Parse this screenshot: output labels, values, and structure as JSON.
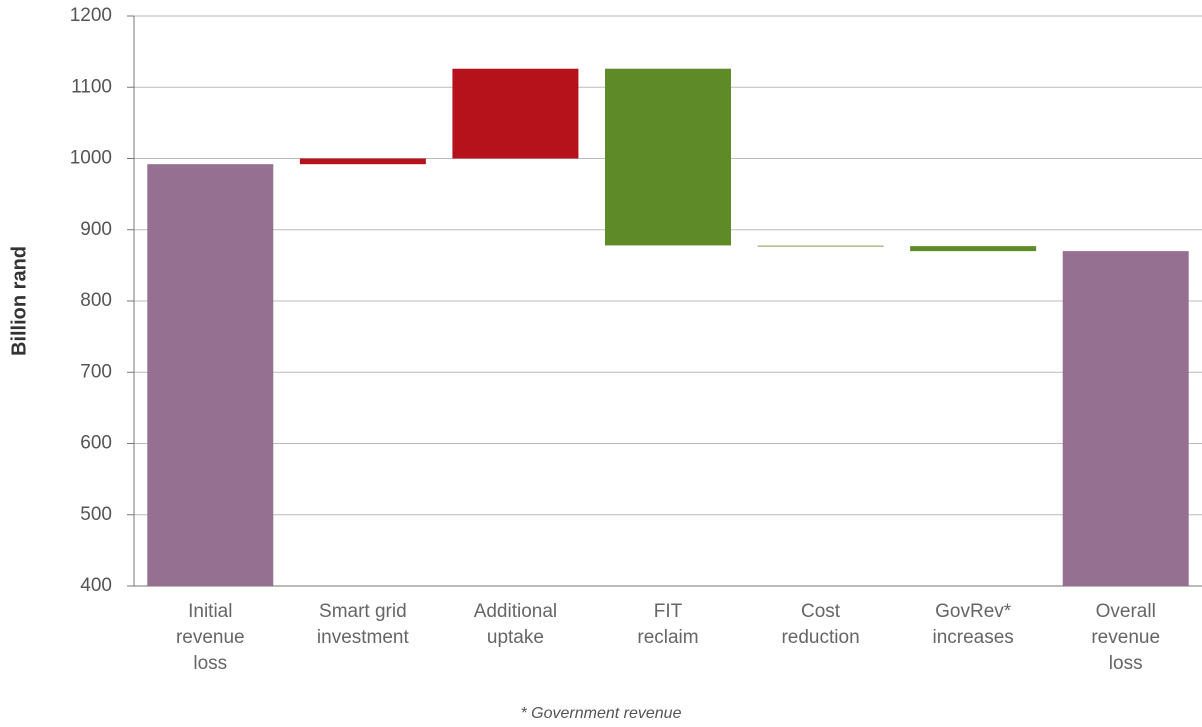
{
  "chart_data": {
    "type": "waterfall",
    "y_label": "Billion rand",
    "footnote": "* Government revenue",
    "categories": [
      "Initial\nrevenue\nloss",
      "Smart grid\ninvestment",
      "Additional\nuptake",
      "FIT\nreclaim",
      "Cost\nreduction",
      "GovRev*\nincreases",
      "Overall\nrevenue\nloss"
    ],
    "values": [
      992,
      8,
      126,
      -248,
      -1,
      -7,
      870
    ],
    "total_color": "#957090",
    "increase_color": "#b5121b",
    "decrease_color": "#5e8a28",
    "ylim": [
      400,
      1200
    ],
    "yticks": [
      400,
      500,
      600,
      700,
      800,
      900,
      1000,
      1100,
      1200
    ],
    "grid": true
  }
}
